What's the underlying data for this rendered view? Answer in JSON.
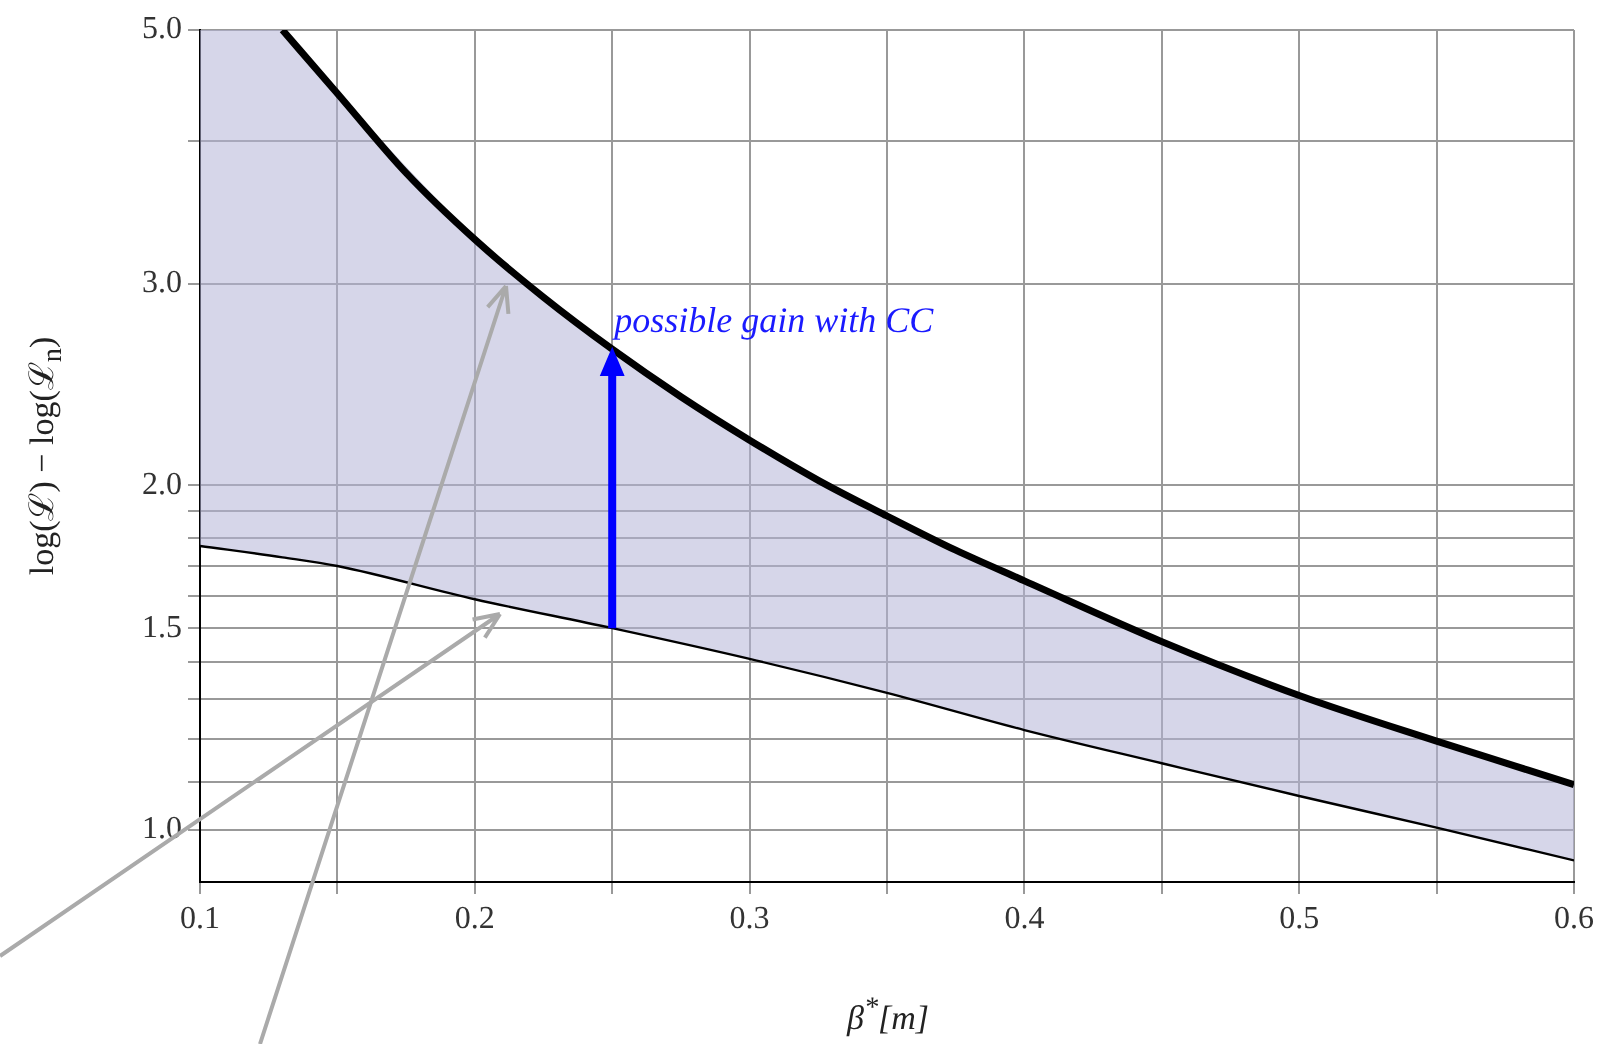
{
  "chart_data": {
    "type": "line",
    "xlabel": "β$^{*}$[m]",
    "ylabel": "log(ℒ) − log(ℒ$_{n}$)",
    "log": "y",
    "grid": true,
    "marker": "none",
    "line_style": "solid",
    "legend": false,
    "xlim": [
      0.1,
      0.6
    ],
    "ylim": [
      0.9,
      5.0
    ],
    "xticks": [
      0.1,
      {
        "value": 0.15,
        "label": null
      },
      0.2,
      {
        "value": 0.25,
        "label": null
      },
      0.3,
      {
        "value": 0.35,
        "label": null
      },
      0.4,
      {
        "value": 0.45,
        "label": null
      },
      0.5,
      {
        "value": 0.55,
        "label": null
      },
      0.6
    ],
    "yticks": [
      {
        "value": 1.0,
        "label": "1.0"
      },
      {
        "value": 1.1,
        "label": null
      },
      {
        "value": 1.2,
        "label": null
      },
      {
        "value": 1.3,
        "label": null
      },
      {
        "value": 1.4,
        "label": null
      },
      1.5,
      {
        "value": 1.6,
        "label": null
      },
      {
        "value": 1.7,
        "label": null
      },
      {
        "value": 1.8,
        "label": null
      },
      {
        "value": 1.9,
        "label": null
      },
      {
        "value": 2.0,
        "label": "2.0"
      },
      {
        "value": 3.0,
        "label": "3.0"
      },
      {
        "value": 4.0,
        "label": null
      },
      {
        "value": 5.0,
        "label": "5.0"
      }
    ],
    "series": [
      {
        "color": "#000000",
        "x": [
          0.13,
          0.15,
          0.175,
          0.2,
          0.225,
          0.25,
          0.275,
          0.3,
          0.325,
          0.35,
          0.375,
          0.4,
          0.45,
          0.5,
          0.55,
          0.6
        ],
        "values": [
          5.0,
          4.4,
          3.75,
          3.28,
          2.92,
          2.63,
          2.39,
          2.19,
          2.02,
          1.88,
          1.755,
          1.65,
          1.46,
          1.31,
          1.195,
          1.095
        ]
      },
      {
        "color": "#000000",
        "x": [
          0.1,
          0.13,
          0.15,
          0.2,
          0.25,
          0.3,
          0.35,
          0.4,
          0.45,
          0.5,
          0.55,
          0.6
        ],
        "values": [
          1.77,
          1.73,
          1.7,
          1.59,
          1.5,
          1.41,
          1.317,
          1.222,
          1.143,
          1.07,
          1.004,
          0.94
        ],
        "lower": [
          1.77,
          1.73,
          1.7,
          1.59,
          1.5,
          1.41,
          1.317,
          1.222,
          1.143,
          1.07,
          1.004,
          0.94
        ],
        "upper": [
          5.0,
          5.0,
          4.4,
          3.28,
          2.63,
          2.19,
          1.88,
          1.65,
          1.46,
          1.31,
          1.195,
          1.095
        ]
      }
    ],
    "annotations": [
      {
        "text": "possible gain with CC",
        "x": 0.25,
        "y": 2.7
      }
    ]
  }
}
